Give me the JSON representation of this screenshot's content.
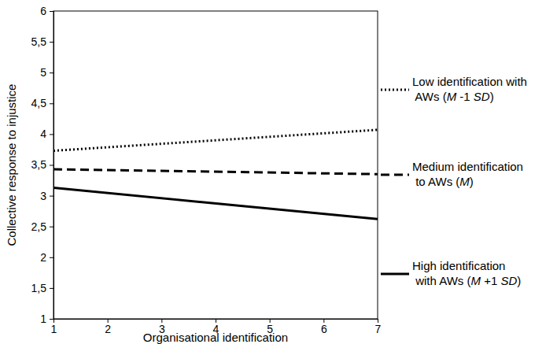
{
  "chart_data": {
    "type": "line",
    "x_label": "Organisational identification",
    "y_label": "Collective response to injustice",
    "x": [
      1,
      7
    ],
    "xlim": [
      1,
      7
    ],
    "xticks": [
      1,
      2,
      3,
      4,
      5,
      6,
      7
    ],
    "ylim": [
      1,
      6
    ],
    "yticks": [
      1,
      {
        "value": 1.5,
        "label": "1,5"
      },
      2,
      {
        "value": 2.5,
        "label": "2,5"
      },
      3,
      {
        "value": 3.5,
        "label": "3,5"
      },
      4,
      {
        "value": 4.5,
        "label": "4,5"
      },
      5,
      {
        "value": 5.5,
        "label": "5,5"
      },
      6
    ],
    "grid": false,
    "legend": "right",
    "series": [
      {
        "name": "Low identification with AWs (M -1 SD)",
        "color": "#000000",
        "line_style": "dotted",
        "values": [
          3.73,
          4.07
        ]
      },
      {
        "name": "Medium identification to AWs (M)",
        "color": "#000000",
        "line_style": "dashed",
        "values": [
          3.43,
          3.35
        ]
      },
      {
        "name": "High identification with AWs (M +1 SD)",
        "color": "#000000",
        "line_style": "solid",
        "values": [
          3.13,
          2.62
        ]
      }
    ]
  }
}
